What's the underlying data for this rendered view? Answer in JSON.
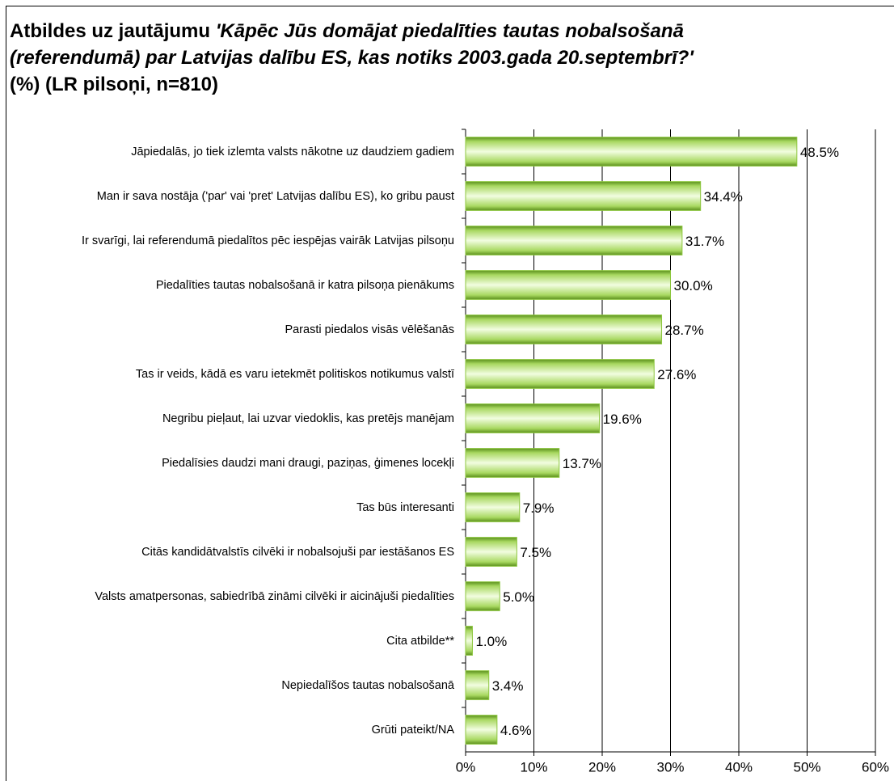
{
  "chart_data": {
    "type": "barh",
    "title": [
      "Atbildes uz jautājumu ",
      "'Kāpēc Jūs domājat piedalīties tautas nobalsošanā (referendumā) par Latvijas dalību ES, kas notiks 2003.gada 20.septembrī?'",
      " (%) (LR pilsoņi, n=810)"
    ],
    "categories": [
      "Jāpiedalās, jo tiek izlemta valsts nākotne uz daudziem gadiem",
      "Man ir sava nostāja ('par' vai 'pret' Latvijas dalību ES), ko gribu paust",
      "Ir svarīgi, lai referendumā piedalītos pēc iespējas vairāk Latvijas pilsoņu",
      "Piedalīties tautas nobalsošanā ir katra pilsoņa pienākums",
      "Parasti piedalos visās vēlēšanās",
      "Tas ir veids, kādā es varu ietekmēt politiskos notikumus valstī",
      "Negribu pieļaut, lai uzvar viedoklis, kas pretējs manējam",
      "Piedalīsies daudzi mani draugi, paziņas, ģimenes locekļi",
      "Tas būs interesanti",
      "Citās kandidātvalstīs cilvēki ir nobalsojuši par iestāšanos ES",
      "Valsts amatpersonas, sabiedrībā zināmi cilvēki ir aicinājuši piedalīties",
      "Cita atbilde**",
      "Nepiedalīšos tautas nobalsošanā",
      "Grūti pateikt/NA"
    ],
    "values": [
      48.5,
      34.4,
      31.7,
      30.0,
      28.7,
      27.6,
      19.6,
      13.7,
      7.9,
      7.5,
      5.0,
      1.0,
      3.4,
      4.6
    ],
    "value_labels": [
      "48.5%",
      "34.4%",
      "31.7%",
      "30.0%",
      "28.7%",
      "27.6%",
      "19.6%",
      "13.7%",
      "7.9%",
      "7.5%",
      "5.0%",
      "1.0%",
      "3.4%",
      "4.6%"
    ],
    "color": "#8cc63e",
    "xlim": [
      0,
      60
    ],
    "xticks": [
      {
        "value": 0,
        "label": "0%"
      },
      {
        "value": 10,
        "label": "10%"
      },
      {
        "value": 20,
        "label": "20%"
      },
      {
        "value": 30,
        "label": "30%"
      },
      {
        "value": 40,
        "label": "40%"
      },
      {
        "value": 50,
        "label": "50%"
      },
      {
        "value": 60,
        "label": "60%"
      }
    ],
    "grid": true
  }
}
